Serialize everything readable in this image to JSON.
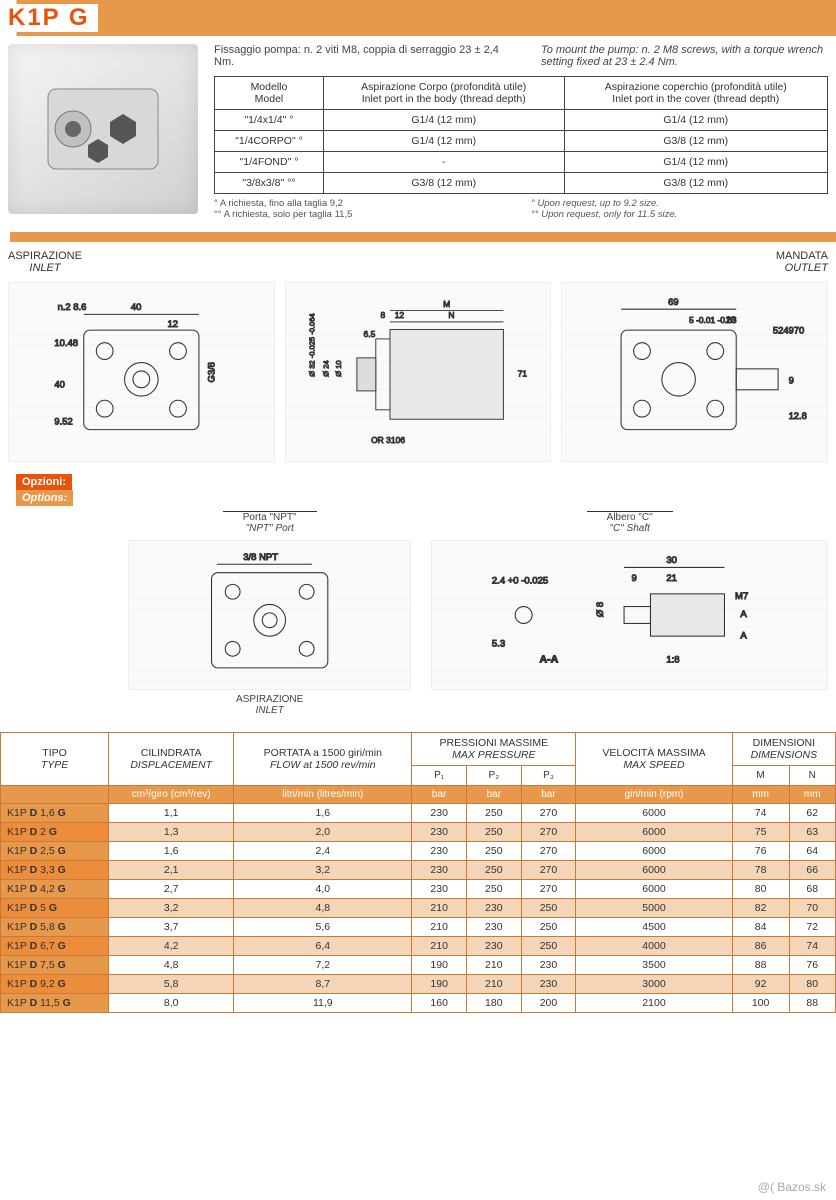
{
  "title": "K1P G",
  "mount": {
    "it": "Fissaggio pompa: n. 2 viti M8, coppia di serraggio 23 ± 2,4 Nm.",
    "en": "To mount the pump: n. 2 M8 screws, with a torque wrench setting fixed at 23 ± 2.4 Nm."
  },
  "inlet_table": {
    "headers": {
      "model_it": "Modello",
      "model_en": "Model",
      "body_it": "Aspirazione Corpo (profondità utile)",
      "body_en": "Inlet port in the body (thread depth)",
      "cover_it": "Aspirazione coperchio (profondità utile)",
      "cover_en": "Inlet port in the cover (thread depth)"
    },
    "rows": [
      {
        "model": "\"1/4x1/4\" °",
        "body": "G1/4 (12 mm)",
        "cover": "G1/4 (12 mm)"
      },
      {
        "model": "\"1/4CORPO\" °",
        "body": "G1/4 (12 mm)",
        "cover": "G3/8 (12 mm)"
      },
      {
        "model": "\"1/4FOND\" °",
        "body": "-",
        "cover": "G1/4 (12 mm)"
      },
      {
        "model": "\"3/8x3/8\" °°",
        "body": "G3/8 (12 mm)",
        "cover": "G3/8 (12 mm)"
      }
    ]
  },
  "footnotes": {
    "it1": "° A richiesta, fino alla taglia 9,2",
    "it2": "°° A richiesta, solo per taglia 11,5",
    "en1": "° Upon request, up to 9.2 size.",
    "en2": "°° Upon request, only for 11.5 size."
  },
  "labels": {
    "aspirazione": "ASPIRAZIONE",
    "inlet": "INLET",
    "mandata": "MANDATA",
    "outlet": "OUTLET",
    "opzioni": "Opzioni:",
    "options": "Options:",
    "npt_it": "Porta \"NPT\"",
    "npt_en": "\"NPT\" Port",
    "shaft_it": "Albero \"C\"",
    "shaft_en": "\"C\" Shaft",
    "npt_dim": "3/8 NPT",
    "asp2": "ASPIRAZIONE",
    "inlet2": "INLET"
  },
  "dims_left": {
    "a": "40",
    "b": "n.2 8.6",
    "c": "12",
    "d": "10.48",
    "e": "40",
    "f": "9.52",
    "g": "G3/8"
  },
  "dims_mid": {
    "a": "12",
    "b": "M",
    "c": "8",
    "d": "N",
    "e": "6.5",
    "f": "71",
    "g": "Ø 32 -0.025 -0.064",
    "h": "Ø 24",
    "i": "Ø 10",
    "j": "OR 3106"
  },
  "dims_right": {
    "a": "69",
    "b": "23",
    "c": "5 -0.01 -0.03",
    "d": "524970",
    "e": "9",
    "f": "12.8"
  },
  "dims_opt": {
    "a": "2.4 +0 -0.025",
    "b": "5.3",
    "c": "A-A",
    "d": "30",
    "e": "9",
    "f": "21",
    "g": "Ø 8",
    "h": "M7",
    "i": "1:8",
    "j": "A"
  },
  "spec_headers": {
    "tipo_it": "TIPO",
    "tipo_en": "TYPE",
    "cil_it": "CILINDRATA",
    "cil_en": "DISPLACEMENT",
    "flow_it": "PORTATA a 1500 giri/min",
    "flow_en": "FLOW at 1500 rev/min",
    "press_it": "PRESSIONI MASSIME",
    "press_en": "MAX PRESSURE",
    "speed_it": "VELOCITÀ MASSIMA",
    "speed_en": "MAX SPEED",
    "dim_it": "DIMENSIONI",
    "dim_en": "DIMENSIONS",
    "p1": "P₁",
    "p2": "P₂",
    "p3": "P₃",
    "m": "M",
    "n": "N"
  },
  "spec_units": {
    "cil": "cm³/giro (cm³/rev)",
    "flow": "litri/min (litres/min)",
    "bar": "bar",
    "speed": "giri/min (rpm)",
    "mm": "mm"
  },
  "spec_rows": [
    {
      "type": "K1P <b>D</b> 1,6 <b>G</b>",
      "cil": "1,1",
      "flow": "1,6",
      "p1": "230",
      "p2": "250",
      "p3": "270",
      "speed": "6000",
      "m": "74",
      "n": "62"
    },
    {
      "type": "K1P <b>D</b> 2 <b>G</b>",
      "cil": "1,3",
      "flow": "2,0",
      "p1": "230",
      "p2": "250",
      "p3": "270",
      "speed": "6000",
      "m": "75",
      "n": "63"
    },
    {
      "type": "K1P <b>D</b> 2,5 <b>G</b>",
      "cil": "1,6",
      "flow": "2,4",
      "p1": "230",
      "p2": "250",
      "p3": "270",
      "speed": "6000",
      "m": "76",
      "n": "64"
    },
    {
      "type": "K1P <b>D</b> 3,3 <b>G</b>",
      "cil": "2,1",
      "flow": "3,2",
      "p1": "230",
      "p2": "250",
      "p3": "270",
      "speed": "6000",
      "m": "78",
      "n": "66"
    },
    {
      "type": "K1P <b>D</b> 4,2 <b>G</b>",
      "cil": "2,7",
      "flow": "4,0",
      "p1": "230",
      "p2": "250",
      "p3": "270",
      "speed": "6000",
      "m": "80",
      "n": "68"
    },
    {
      "type": "K1P <b>D</b> 5 <b>G</b>",
      "cil": "3,2",
      "flow": "4,8",
      "p1": "210",
      "p2": "230",
      "p3": "250",
      "speed": "5000",
      "m": "82",
      "n": "70"
    },
    {
      "type": "K1P <b>D</b> 5,8 <b>G</b>",
      "cil": "3,7",
      "flow": "5,6",
      "p1": "210",
      "p2": "230",
      "p3": "250",
      "speed": "4500",
      "m": "84",
      "n": "72"
    },
    {
      "type": "K1P <b>D</b> 6,7 <b>G</b>",
      "cil": "4,2",
      "flow": "6,4",
      "p1": "210",
      "p2": "230",
      "p3": "250",
      "speed": "4000",
      "m": "86",
      "n": "74"
    },
    {
      "type": "K1P <b>D</b> 7,5 <b>G</b>",
      "cil": "4,8",
      "flow": "7,2",
      "p1": "190",
      "p2": "210",
      "p3": "230",
      "speed": "3500",
      "m": "88",
      "n": "76"
    },
    {
      "type": "K1P <b>D</b> 9,2 <b>G</b>",
      "cil": "5,8",
      "flow": "8,7",
      "p1": "190",
      "p2": "210",
      "p3": "230",
      "speed": "3000",
      "m": "92",
      "n": "80"
    },
    {
      "type": "K1P <b>D</b> 11,5 <b>G</b>",
      "cil": "8,0",
      "flow": "11,9",
      "p1": "160",
      "p2": "180",
      "p3": "200",
      "speed": "2100",
      "m": "100",
      "n": "88"
    }
  ],
  "watermark": "@( Bazos.sk"
}
